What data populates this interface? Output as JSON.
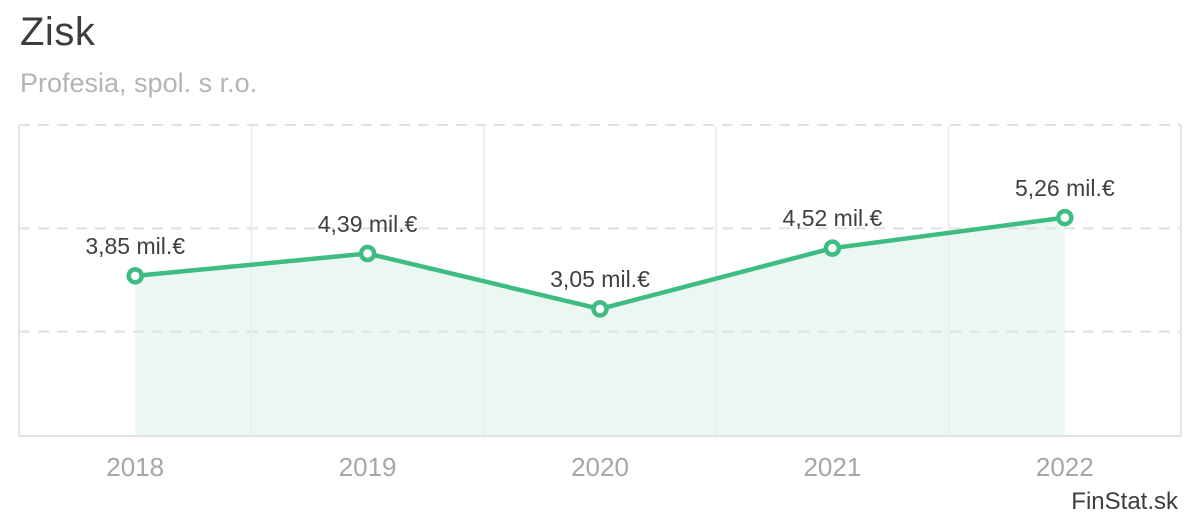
{
  "header": {
    "title": "Zisk",
    "subtitle": "Profesia, spol. s r.o."
  },
  "watermark": {
    "text": "FinStat.sk"
  },
  "chart_data": {
    "type": "area",
    "title": "Zisk",
    "subtitle": "Profesia, spol. s r.o.",
    "categories": [
      "2018",
      "2019",
      "2020",
      "2021",
      "2022"
    ],
    "values": [
      3.85,
      4.39,
      3.05,
      4.52,
      5.26
    ],
    "point_labels": [
      "3,85 mil.€",
      "4,39 mil.€",
      "3,05 mil.€",
      "4,52 mil.€",
      "5,26 mil.€"
    ],
    "unit": "mil.€",
    "xlabel": "",
    "ylabel": "",
    "ylim": [
      0,
      7.5
    ],
    "y_gridline_step": 2.5,
    "grid": "horizontal-dashed-plus-vertical-band-separators",
    "legend_position": "none"
  },
  "colors": {
    "line": "#3ebc82",
    "marker_fill": "#ffffff",
    "area_fill": "rgba(62,188,130,0.10)",
    "grid_dashed": "#e0e0e0",
    "grid_vertical": "#e9edf0",
    "border": "#dfe5ea",
    "axis_line": "#e2e2e2",
    "title_text": "#3d3d3d",
    "subtitle_text": "#b4b4b4",
    "label_text": "#404040",
    "axis_text": "#a6a6a6",
    "watermark_text": "#3d3d3d"
  }
}
